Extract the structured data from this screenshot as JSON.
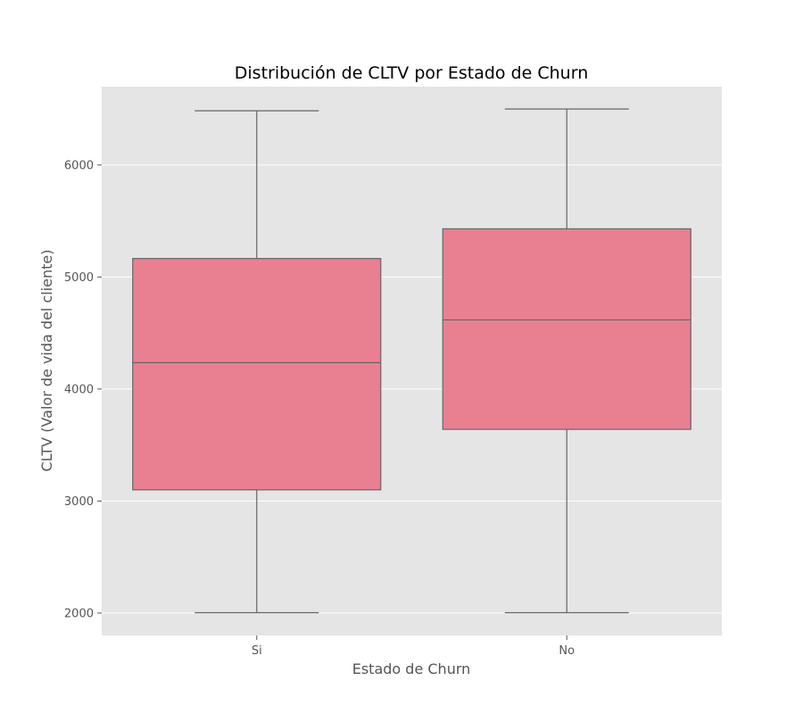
{
  "chart_data": {
    "type": "box",
    "title": "Distribución de CLTV por Estado de Churn",
    "xlabel": "Estado de Churn",
    "ylabel": "CLTV (Valor de vida del cliente)",
    "categories": [
      "Si",
      "No"
    ],
    "boxes": [
      {
        "category": "Si",
        "whisker_low": 2003,
        "q1": 3100,
        "median": 4235,
        "q3": 5165,
        "whisker_high": 6484
      },
      {
        "category": "No",
        "whisker_low": 2003,
        "q1": 3640,
        "median": 4617,
        "q3": 5430,
        "whisker_high": 6500
      }
    ],
    "ylim": [
      1800,
      6700
    ],
    "yticks": [
      2000,
      3000,
      4000,
      5000,
      6000
    ],
    "grid": true,
    "box_color": "#e88091",
    "line_color": "#666666",
    "background_color": "#e5e5e5",
    "grid_color": "#ffffff"
  }
}
